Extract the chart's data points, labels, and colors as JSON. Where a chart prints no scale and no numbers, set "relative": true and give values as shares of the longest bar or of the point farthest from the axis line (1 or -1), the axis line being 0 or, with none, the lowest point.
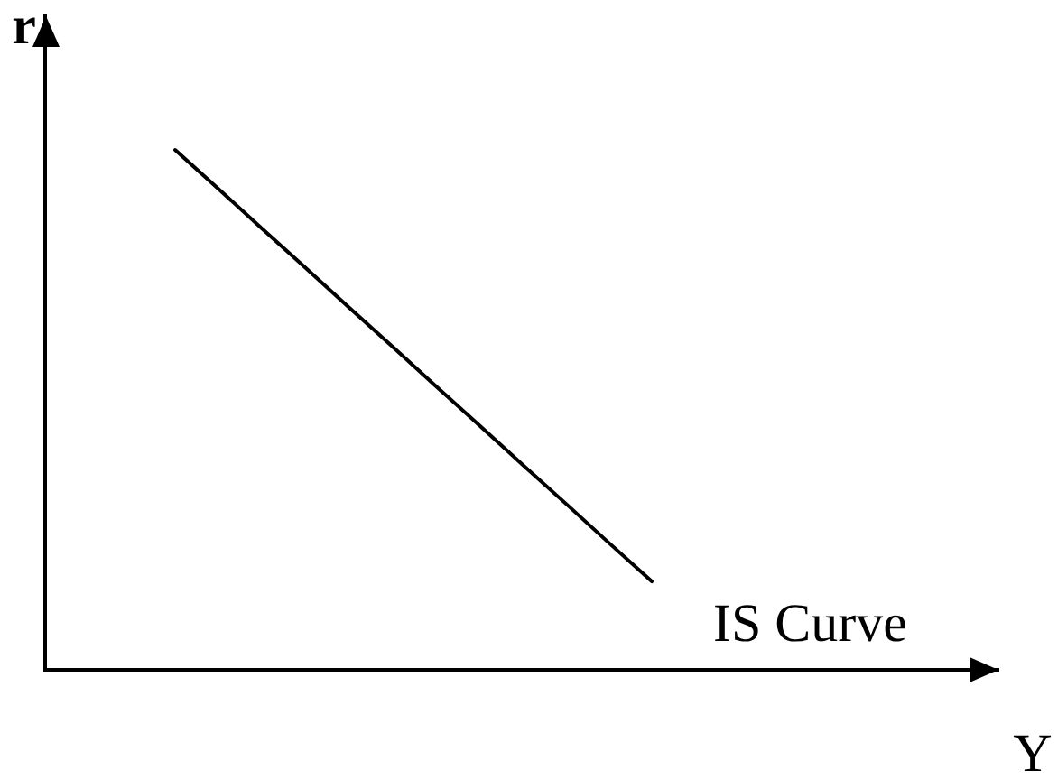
{
  "chart_data": {
    "type": "line",
    "xlabel": "Y",
    "ylabel": "r",
    "relative": true,
    "marker": "none",
    "line_style": "solid",
    "categories": [
      null,
      null,
      null,
      null,
      null,
      null,
      null,
      null,
      null,
      null,
      null,
      null,
      null,
      null,
      null,
      null,
      null,
      null,
      null,
      null,
      null,
      null,
      null
    ],
    "series": [
      {
        "name": "IS Curve",
        "color": "#000000",
        "values": [
          null,
          null,
          null,
          1,
          0.925,
          0.849,
          0.774,
          0.698,
          0.623,
          0.547,
          0.472,
          0.396,
          0.321,
          0.245,
          0.17,
          null,
          null,
          null,
          null,
          null,
          null,
          null,
          null
        ]
      }
    ]
  }
}
